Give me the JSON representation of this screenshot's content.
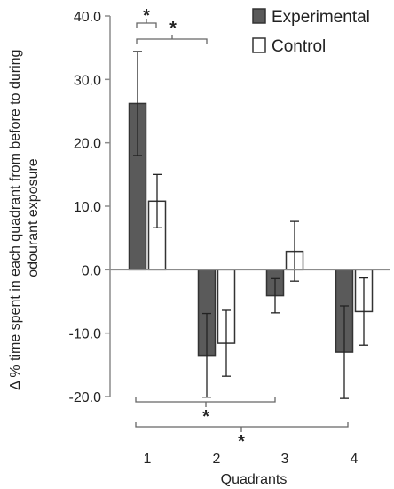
{
  "chart_data": {
    "type": "bar",
    "xlabel": "Quadrants",
    "ylabel_lines": [
      "Δ % time spent in each quadrant from before to during",
      "odourant exposure"
    ],
    "categories": [
      "1",
      "2",
      "3",
      "4"
    ],
    "ylim": [
      -20,
      40
    ],
    "yticks": [
      "40.0",
      "30.0",
      "20.0",
      "10.0",
      "0.0",
      "-10.0",
      "-20.0"
    ],
    "ytick_values": [
      40,
      30,
      20,
      10,
      0,
      -10,
      -20
    ],
    "series": [
      {
        "name": "Experimental",
        "color": "#5a5a5a",
        "values": [
          26.2,
          -13.5,
          -4.1,
          -13.0
        ],
        "errors": [
          8.2,
          6.6,
          2.7,
          7.3
        ]
      },
      {
        "name": "Control",
        "color": "#ffffff",
        "values": [
          10.8,
          -11.6,
          2.9,
          -6.6
        ],
        "errors": [
          4.2,
          5.2,
          4.7,
          5.3
        ]
      }
    ],
    "significance": [
      {
        "label": "*",
        "between": "Experimental 1 – Control 1"
      },
      {
        "label": "*",
        "between": "Quadrant 1 – Quadrant 2"
      },
      {
        "label": "*",
        "between": "Quadrant 1 – Quadrant 3"
      },
      {
        "label": "*",
        "between": "Quadrant 1 – Quadrant 4"
      }
    ],
    "legend_position": "top-right"
  }
}
